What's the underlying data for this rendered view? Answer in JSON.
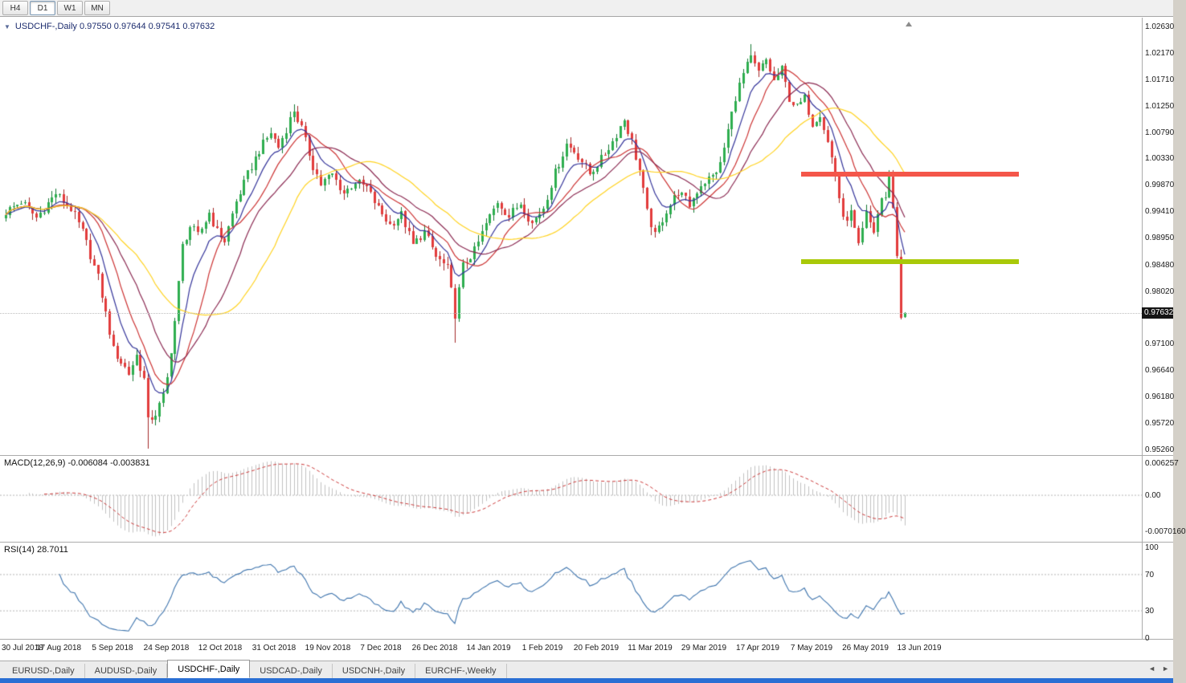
{
  "toolbar": {
    "buttons": [
      "H4",
      "D1",
      "W1",
      "MN"
    ],
    "active": "D1"
  },
  "icons": {
    "collapse": "▼",
    "tab_left": "◄",
    "tab_right": "►"
  },
  "price_axis": {
    "labels": [
      "1.02630",
      "1.02170",
      "1.01710",
      "1.01250",
      "1.00790",
      "1.00330",
      "0.99870",
      "0.99410",
      "0.98950",
      "0.98480",
      "0.98020",
      "0.97100",
      "0.96640",
      "0.96180",
      "0.95720",
      "0.95260"
    ],
    "tag": "0.97632",
    "tag_value": 0.97632
  },
  "tabs": {
    "items": [
      "EURUSD-,Daily",
      "AUDUSD-,Daily",
      "USDCHF-,Daily",
      "USDCAD-,Daily",
      "USDCNH-,Daily",
      "EURCHF-,Weekly"
    ],
    "active": "USDCHF-,Daily"
  },
  "chart_data": {
    "type": "candlestick",
    "symbol": "USDCHF",
    "timeframe": "Daily",
    "title": "USDCHF-,Daily  0.97550 0.97644 0.97541 0.97632",
    "ohlc": {
      "open": "0.97550",
      "high": "0.97644",
      "low": "0.97541",
      "close": "0.97632"
    },
    "ylim": [
      0.95161,
      1.02784
    ],
    "candle_up_color": "#2eae4f",
    "candle_up_wick": "#157a33",
    "candle_down_color": "#e23b3b",
    "candle_down_wick": "#a22727",
    "anchors": [
      [
        0,
        0.994
      ],
      [
        4,
        0.9958
      ],
      [
        8,
        0.993
      ],
      [
        13,
        0.9972
      ],
      [
        17,
        0.9945
      ],
      [
        20,
        0.9905
      ],
      [
        24,
        0.9825
      ],
      [
        28,
        0.97
      ],
      [
        32,
        0.9658
      ],
      [
        34,
        0.969
      ],
      [
        36,
        0.9648
      ],
      [
        37,
        0.9575
      ],
      [
        39,
        0.9588
      ],
      [
        41,
        0.9618
      ],
      [
        42,
        0.965
      ],
      [
        44,
        0.975
      ],
      [
        46,
        0.988
      ],
      [
        48,
        0.9915
      ],
      [
        50,
        0.9898
      ],
      [
        53,
        0.9938
      ],
      [
        55,
        0.9905
      ],
      [
        57,
        0.989
      ],
      [
        60,
        0.9958
      ],
      [
        63,
        1.0005
      ],
      [
        66,
        1.0048
      ],
      [
        69,
        1.0078
      ],
      [
        71,
        1.0052
      ],
      [
        73,
        1.0085
      ],
      [
        75,
        1.0118
      ],
      [
        77,
        1.0085
      ],
      [
        80,
        1.002
      ],
      [
        82,
        0.9988
      ],
      [
        85,
        1.0005
      ],
      [
        88,
        0.9972
      ],
      [
        91,
        0.9992
      ],
      [
        94,
        0.9982
      ],
      [
        97,
        0.9945
      ],
      [
        100,
        0.9918
      ],
      [
        103,
        0.9935
      ],
      [
        106,
        0.9882
      ],
      [
        109,
        0.9905
      ],
      [
        112,
        0.9862
      ],
      [
        115,
        0.984
      ],
      [
        117,
        0.9762
      ],
      [
        119,
        0.9846
      ],
      [
        122,
        0.9872
      ],
      [
        125,
        0.9918
      ],
      [
        128,
        0.9958
      ],
      [
        131,
        0.9932
      ],
      [
        134,
        0.9956
      ],
      [
        137,
        0.992
      ],
      [
        140,
        0.9948
      ],
      [
        143,
        1.0008
      ],
      [
        146,
        1.0058
      ],
      [
        149,
        1.0038
      ],
      [
        152,
        1.0006
      ],
      [
        155,
        1.0032
      ],
      [
        158,
        1.0062
      ],
      [
        161,
        1.0102
      ],
      [
        163,
        1.0062
      ],
      [
        165,
        1.0012
      ],
      [
        167,
        0.9938
      ],
      [
        169,
        0.9898
      ],
      [
        172,
        0.9942
      ],
      [
        175,
        0.9975
      ],
      [
        178,
        0.9952
      ],
      [
        181,
        0.9988
      ],
      [
        184,
        1.0002
      ],
      [
        186,
        1.0022
      ],
      [
        188,
        1.0082
      ],
      [
        190,
        1.014
      ],
      [
        192,
        1.018
      ],
      [
        194,
        1.0208
      ],
      [
        196,
        1.0182
      ],
      [
        198,
        1.0205
      ],
      [
        200,
        1.0168
      ],
      [
        202,
        1.0188
      ],
      [
        204,
        1.0138
      ],
      [
        206,
        1.0122
      ],
      [
        208,
        1.0138
      ],
      [
        210,
        1.0095
      ],
      [
        212,
        1.0112
      ],
      [
        214,
        1.0062
      ],
      [
        216,
        1.0005
      ],
      [
        218,
        0.9925
      ],
      [
        220,
        0.9938
      ],
      [
        222,
        0.9878
      ],
      [
        224,
        0.9936
      ],
      [
        226,
        0.9906
      ],
      [
        228,
        0.9964
      ],
      [
        229,
        0.9965
      ],
      [
        230,
        1.0002
      ],
      [
        231,
        0.9948
      ],
      [
        232,
        0.9862
      ],
      [
        233,
        0.9756
      ],
      [
        234,
        0.97632
      ]
    ],
    "wicks": [
      {
        "i": 37,
        "low": 0.9527
      },
      {
        "i": 75,
        "high": 1.0128
      },
      {
        "i": 117,
        "low": 0.9712
      },
      {
        "i": 194,
        "high": 1.0232
      },
      {
        "i": 230,
        "high": 1.0012
      },
      {
        "i": 233,
        "low": 0.9752
      },
      {
        "i": 234,
        "high": 0.97644,
        "low": 0.97541
      }
    ],
    "moving_averages": [
      {
        "period": 8,
        "type": "ema",
        "color": "#34349a"
      },
      {
        "period": 13,
        "type": "sma",
        "color": "#cc3333"
      },
      {
        "period": 21,
        "type": "sma",
        "color": "#8b2a52"
      },
      {
        "period": 34,
        "type": "sma",
        "color": "#ffd21f"
      }
    ],
    "levels": [
      {
        "name": "resistance",
        "price": 1.0005,
        "color": "#f4564a",
        "x1": 997,
        "x2": 1268,
        "thickness": 6
      },
      {
        "name": "support",
        "price": 0.9853,
        "color": "#a9c908",
        "x1": 997,
        "x2": 1268,
        "thickness": 6
      }
    ],
    "macd": {
      "label": "MACD(12,26,9) -0.006084 -0.003831",
      "fast": 12,
      "slow": 26,
      "signal": 9,
      "value": -0.006084,
      "signal_value": -0.003831,
      "axis_labels": [
        "0.006257",
        "0.00",
        "-0.0070160"
      ],
      "scale_max": 0.006257,
      "scale_min": -0.007016,
      "histogram_color": "#c0c0c0",
      "signal_color": "#cc3b3b"
    },
    "rsi": {
      "label": "RSI(14) 28.7011",
      "period": 14,
      "value": 28.7011,
      "axis_labels": [
        "100",
        "70",
        "30",
        "0"
      ],
      "levels": [
        70,
        30
      ],
      "color": "#3e74ad"
    },
    "dates": [
      "30 Jul 2018",
      "17 Aug 2018",
      "5 Sep 2018",
      "24 Sep 2018",
      "12 Oct 2018",
      "31 Oct 2018",
      "19 Nov 2018",
      "7 Dec 2018",
      "26 Dec 2018",
      "14 Jan 2019",
      "1 Feb 2019",
      "20 Feb 2019",
      "11 Mar 2019",
      "29 Mar 2019",
      "17 Apr 2019",
      "7 May 2019",
      "26 May 2019",
      "13 Jun 2019"
    ]
  }
}
